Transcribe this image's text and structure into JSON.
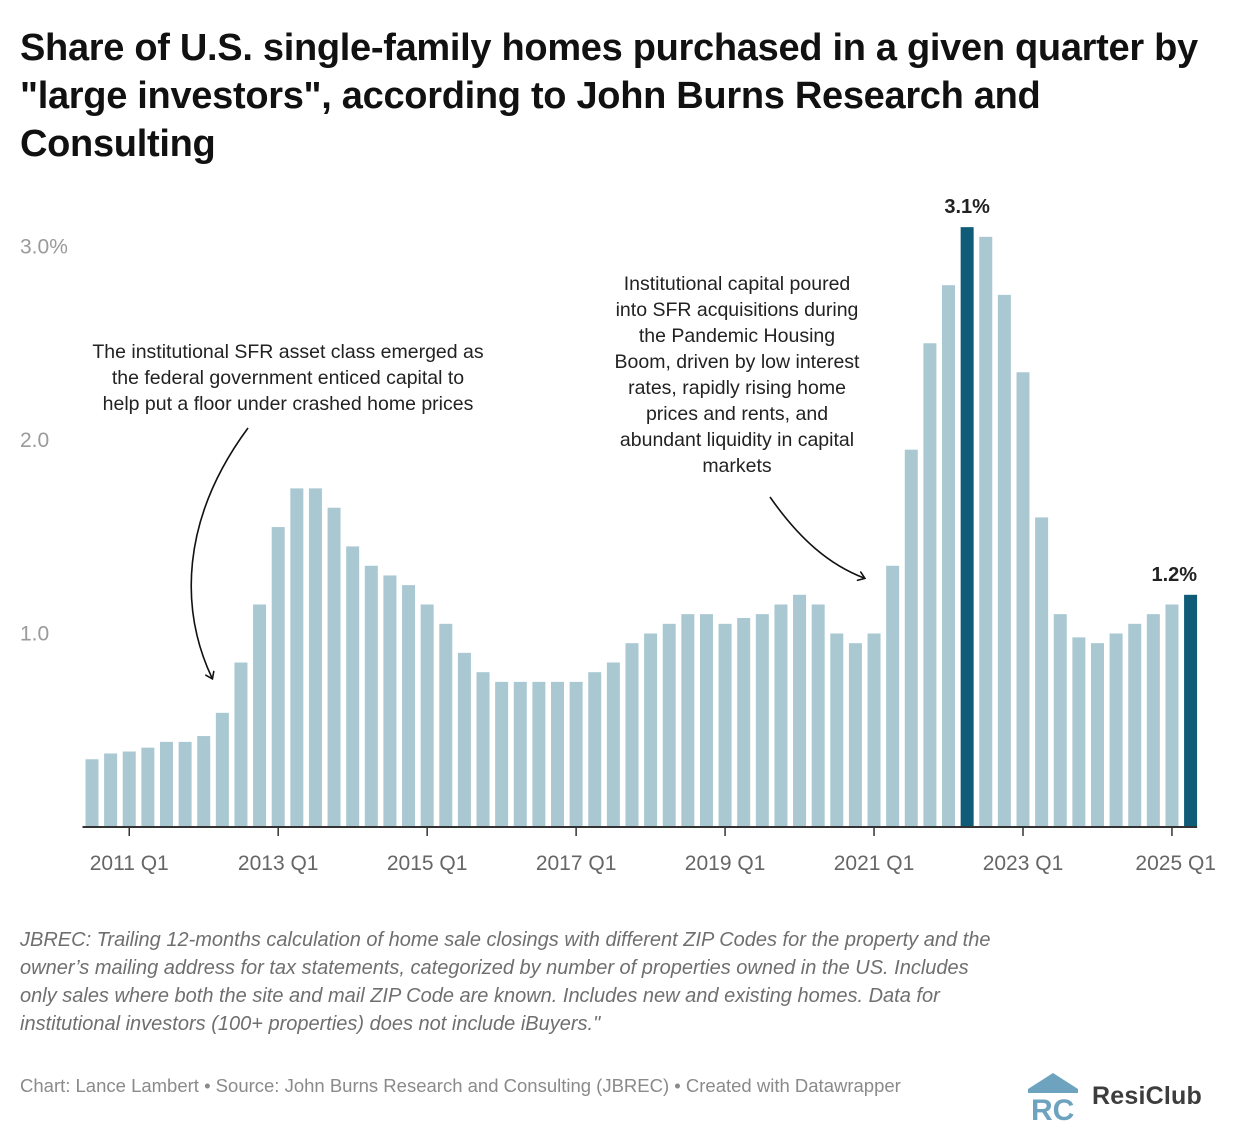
{
  "title": "Share of U.S. single-family homes purchased in a given quarter by \"large investors\", according to John Burns Research and Consulting",
  "footnote": "JBREC: Trailing 12-months calculation of home sale closings with different ZIP Codes for the property and the owner’s mailing address for tax statements, categorized by number of properties owned in the US. Includes only sales where both the site and mail ZIP Code are known. Includes new and existing homes. Data for institutional investors (100+ properties) does not include iBuyers.\"",
  "credit": "Chart: Lance Lambert • Source: John Burns Research and Consulting (JBREC) • Created with Datawrapper",
  "logo": {
    "text": "ResiClub",
    "mark_letters": "RC"
  },
  "colors": {
    "bar": "#a9c8d2",
    "highlight": "#0f5b78",
    "axis": "#333333",
    "tick_text": "#9a9a9a"
  },
  "chart_data": {
    "type": "bar",
    "title": "Share of U.S. single-family homes purchased in a given quarter by \"large investors\", according to John Burns Research and Consulting",
    "xlabel": "",
    "ylabel": "",
    "ylim": [
      0,
      3.0
    ],
    "y_ticks": [
      {
        "value": 3.0,
        "label": "3.0%"
      },
      {
        "value": 2.0,
        "label": "2.0"
      },
      {
        "value": 1.0,
        "label": "1.0"
      }
    ],
    "grid": false,
    "x_tick_labels": [
      {
        "category": "2011 Q1",
        "label": "2011 Q1"
      },
      {
        "category": "2013 Q1",
        "label": "2013 Q1"
      },
      {
        "category": "2015 Q1",
        "label": "2015 Q1"
      },
      {
        "category": "2017 Q1",
        "label": "2017 Q1"
      },
      {
        "category": "2019 Q1",
        "label": "2019 Q1"
      },
      {
        "category": "2021 Q1",
        "label": "2021 Q1"
      },
      {
        "category": "2023 Q1",
        "label": "2023 Q1"
      },
      {
        "category": "2025 Q1",
        "label": "2025 Q1"
      }
    ],
    "categories": [
      "2010 Q3",
      "2010 Q4",
      "2011 Q1",
      "2011 Q2",
      "2011 Q3",
      "2011 Q4",
      "2012 Q1",
      "2012 Q2",
      "2012 Q3",
      "2012 Q4",
      "2013 Q1",
      "2013 Q2",
      "2013 Q3",
      "2013 Q4",
      "2014 Q1",
      "2014 Q2",
      "2014 Q3",
      "2014 Q4",
      "2015 Q1",
      "2015 Q2",
      "2015 Q3",
      "2015 Q4",
      "2016 Q1",
      "2016 Q2",
      "2016 Q3",
      "2016 Q4",
      "2017 Q1",
      "2017 Q2",
      "2017 Q3",
      "2017 Q4",
      "2018 Q1",
      "2018 Q2",
      "2018 Q3",
      "2018 Q4",
      "2019 Q1",
      "2019 Q2",
      "2019 Q3",
      "2019 Q4",
      "2020 Q1",
      "2020 Q2",
      "2020 Q3",
      "2020 Q4",
      "2021 Q1",
      "2021 Q2",
      "2021 Q3",
      "2021 Q4",
      "2022 Q1",
      "2022 Q2",
      "2022 Q3",
      "2022 Q4",
      "2023 Q1",
      "2023 Q2",
      "2023 Q3",
      "2023 Q4",
      "2024 Q1",
      "2024 Q2",
      "2024 Q3",
      "2024 Q4",
      "2025 Q1",
      "2025 Q2"
    ],
    "values": [
      0.35,
      0.38,
      0.39,
      0.41,
      0.44,
      0.44,
      0.47,
      0.59,
      0.85,
      1.15,
      1.55,
      1.75,
      1.75,
      1.65,
      1.45,
      1.35,
      1.3,
      1.25,
      1.15,
      1.05,
      0.9,
      0.8,
      0.75,
      0.75,
      0.75,
      0.75,
      0.75,
      0.8,
      0.85,
      0.95,
      1.0,
      1.05,
      1.1,
      1.1,
      1.05,
      1.08,
      1.1,
      1.15,
      1.2,
      1.15,
      1.0,
      0.95,
      1.0,
      1.35,
      1.95,
      2.5,
      2.8,
      3.1,
      3.05,
      2.75,
      2.35,
      1.6,
      1.1,
      0.98,
      0.95,
      1.0,
      1.05,
      1.1,
      1.15,
      1.2
    ],
    "highlights": [
      {
        "category": "2022 Q2",
        "label": "3.1%"
      },
      {
        "category": "2025 Q2",
        "label": "1.2%"
      }
    ],
    "annotations": [
      {
        "lines": [
          "The institutional SFR asset class emerged as",
          "the federal government enticed capital to",
          "help put a floor under crashed home prices"
        ],
        "points_to": "2012 Q2"
      },
      {
        "lines": [
          "Institutional capital poured",
          "into SFR acquisitions during",
          "the Pandemic Housing",
          "Boom, driven by low interest",
          "rates, rapidly rising home",
          "prices and rents, and",
          "abundant liquidity in capital",
          "markets"
        ],
        "points_to": "2021 Q1"
      }
    ]
  }
}
